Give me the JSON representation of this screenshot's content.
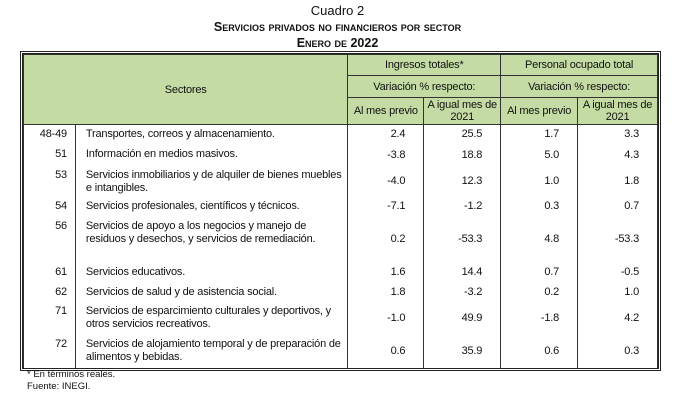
{
  "title": {
    "line1": "Cuadro 2",
    "line2": "Servicios privados no financieros por sector",
    "line3": "Enero de 2022"
  },
  "header": {
    "sectores": "Sectores",
    "ingresos": "Ingresos totales*",
    "personal": "Personal ocupado total",
    "variacion": "Variación % respecto:",
    "al_mes_previo": "Al mes previo",
    "a_igual_mes": "A igual mes de 2021"
  },
  "rows": [
    {
      "code": "48-49",
      "sector": "Transportes, correos y almacenamiento.",
      "ing_mes": "2.4",
      "ing_anual": "25.5",
      "per_mes": "1.7",
      "per_anual": "3.3"
    },
    {
      "code": "51",
      "sector": "Información en medios masivos.",
      "ing_mes": "-3.8",
      "ing_anual": "18.8",
      "per_mes": "5.0",
      "per_anual": "4.3"
    },
    {
      "code": "53",
      "sector": "Servicios inmobiliarios y de alquiler de bienes muebles e intangibles.",
      "ing_mes": "-4.0",
      "ing_anual": "12.3",
      "per_mes": "1.0",
      "per_anual": "1.8"
    },
    {
      "code": "54",
      "sector": "Servicios profesionales, científicos y técnicos.",
      "ing_mes": "-7.1",
      "ing_anual": "-1.2",
      "per_mes": "0.3",
      "per_anual": "0.7"
    },
    {
      "code": "56",
      "sector": "Servicios de apoyo a los negocios y manejo de residuos y desechos, y servicios de remediación.",
      "ing_mes": "0.2",
      "ing_anual": "-53.3",
      "per_mes": "4.8",
      "per_anual": "-53.3"
    },
    {
      "code": "61",
      "sector": "Servicios educativos.",
      "ing_mes": "1.6",
      "ing_anual": "14.4",
      "per_mes": "0.7",
      "per_anual": "-0.5"
    },
    {
      "code": "62",
      "sector": "Servicios de salud y de asistencia social.",
      "ing_mes": "1.8",
      "ing_anual": "-3.2",
      "per_mes": "0.2",
      "per_anual": "1.0"
    },
    {
      "code": "71",
      "sector": "Servicios de esparcimiento culturales y deportivos, y otros servicios recreativos.",
      "ing_mes": "-1.0",
      "ing_anual": "49.9",
      "per_mes": "-1.8",
      "per_anual": "4.2"
    },
    {
      "code": "72",
      "sector": "Servicios de alojamiento temporal y de preparación de alimentos y bebidas.",
      "ing_mes": "0.6",
      "ing_anual": "35.9",
      "per_mes": "0.6",
      "per_anual": "0.3"
    }
  ],
  "footer": {
    "note": "*  En términos reales.",
    "source": "Fuente: INEGI."
  },
  "colors": {
    "header_bg": "#c4dca4"
  }
}
